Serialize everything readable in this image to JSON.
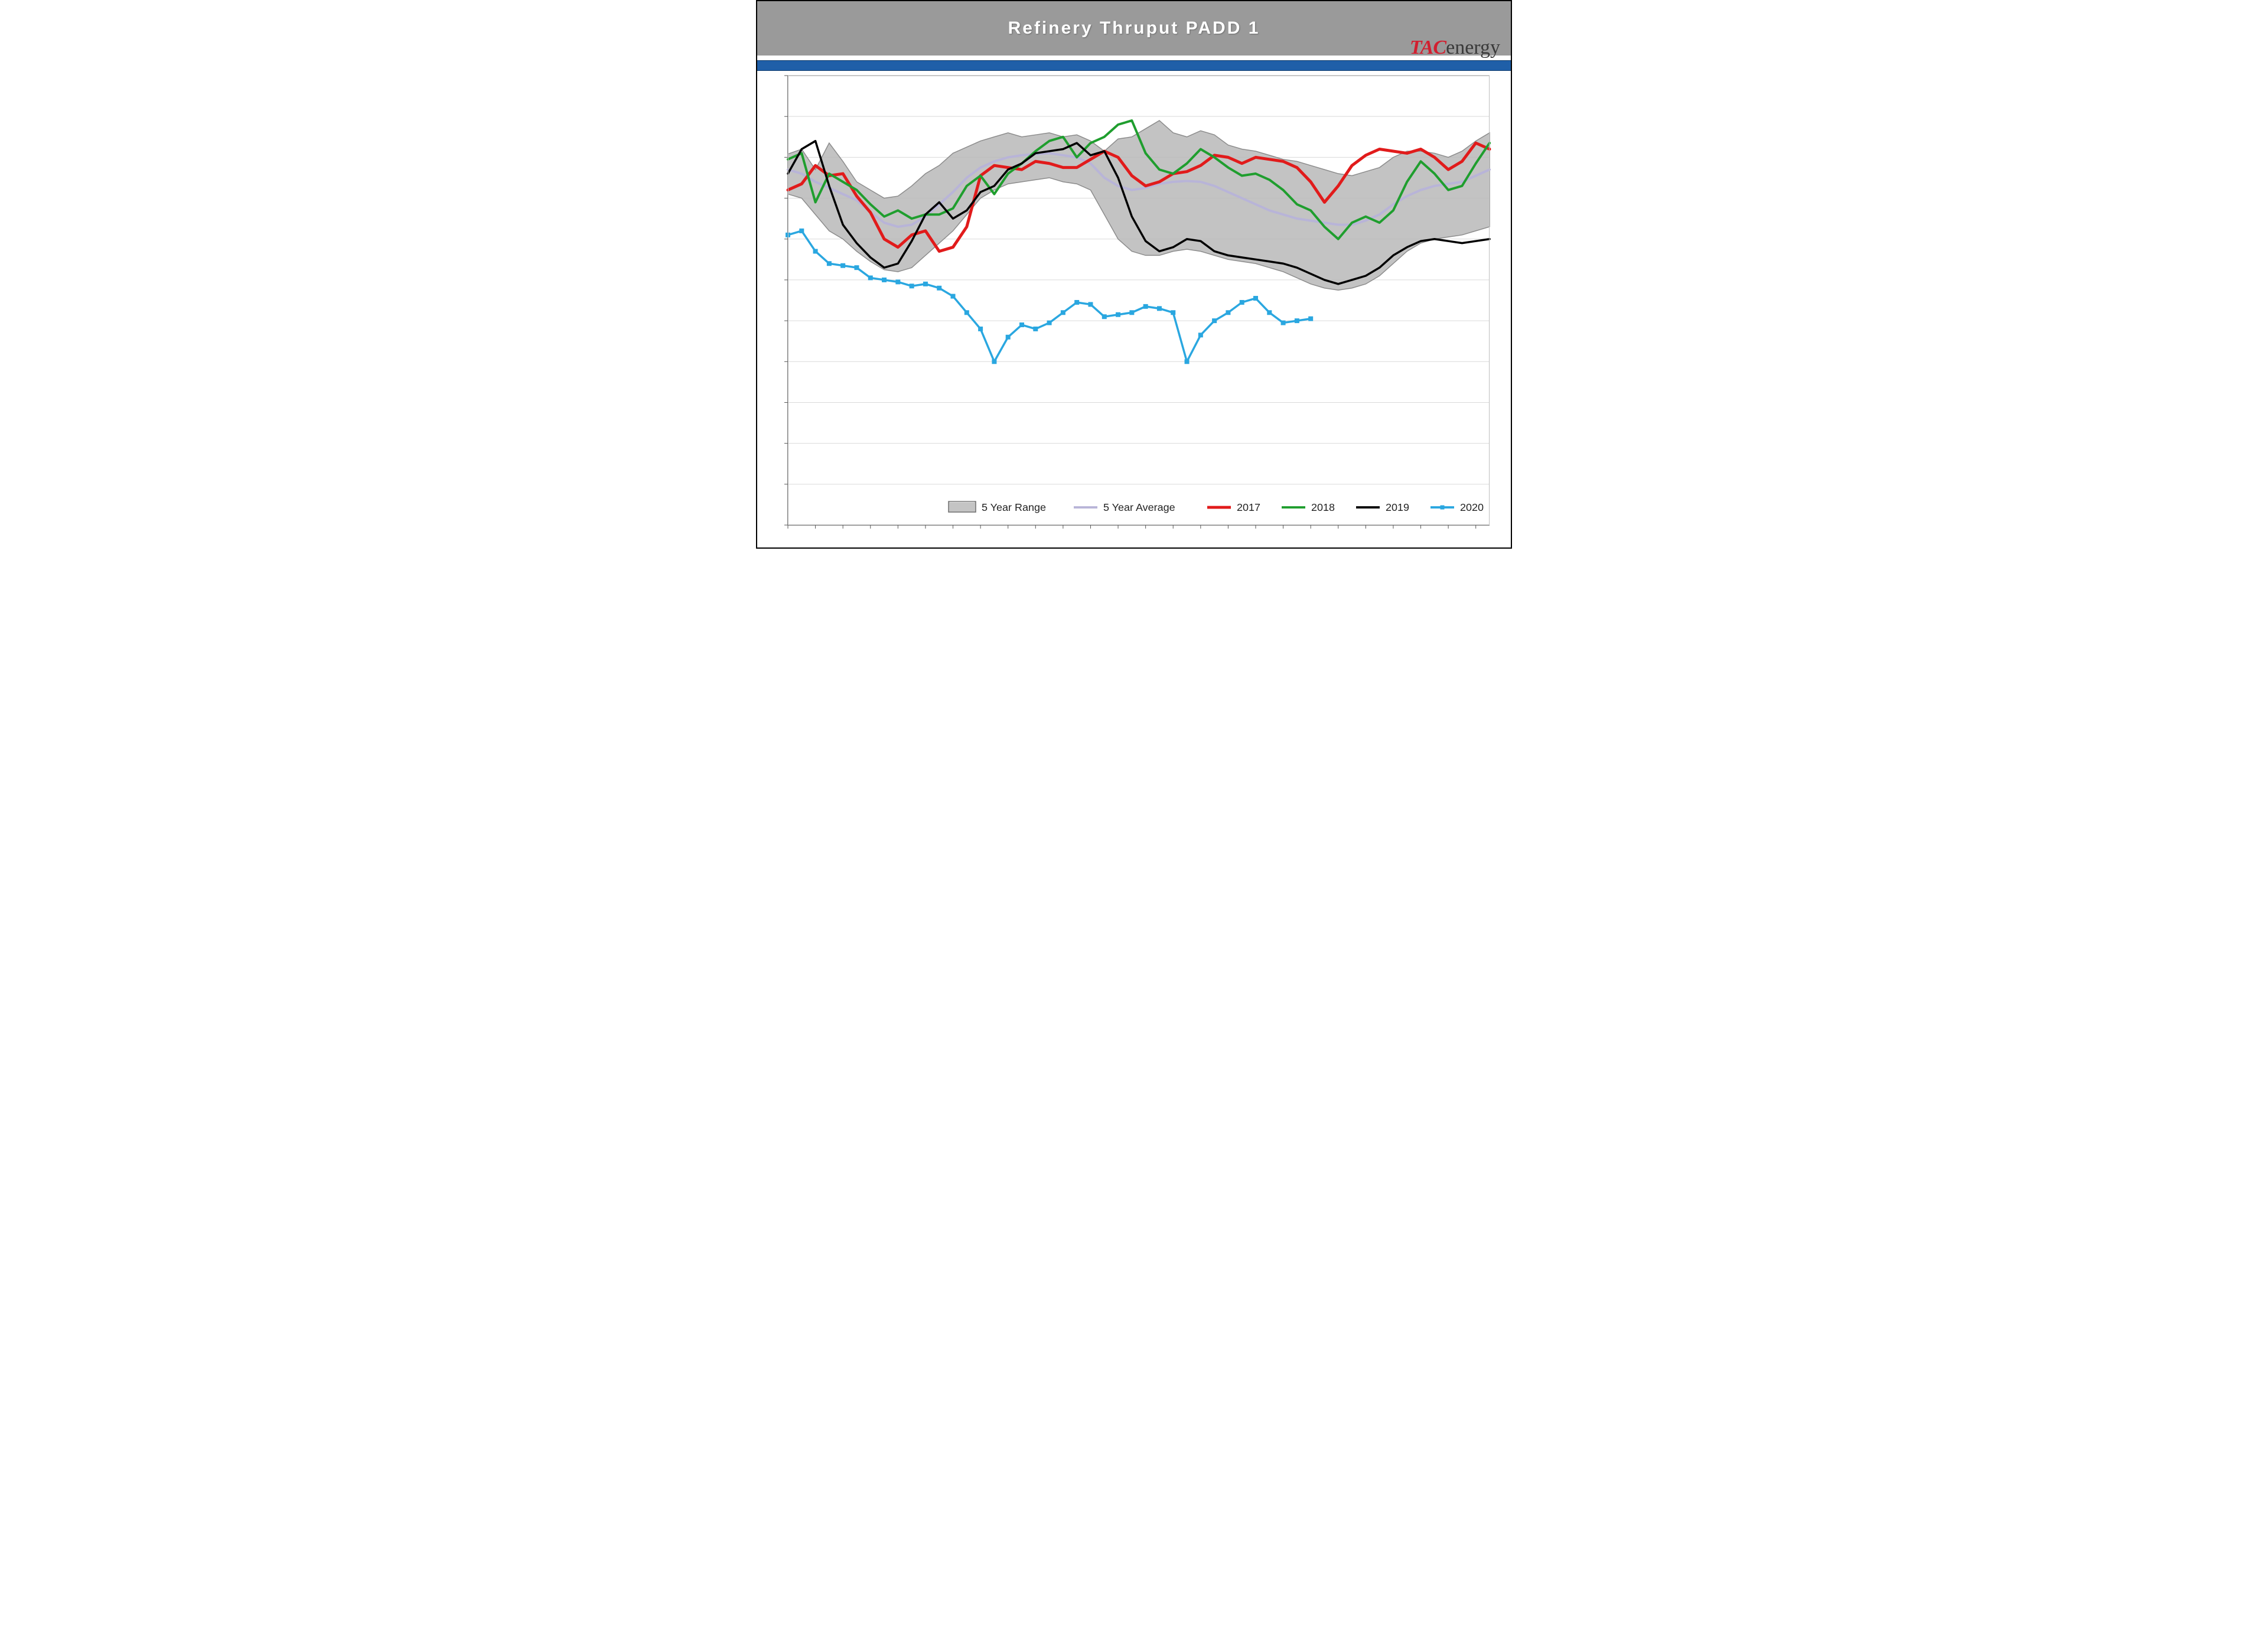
{
  "header": {
    "title": "Refinery Thruput PADD 1",
    "title_color": "#ffffff",
    "title_bar_bg": "#9a9a9a",
    "blue_band_color": "#1f5fa8",
    "logo_tac": "TAC",
    "logo_energy": "energy",
    "logo_tac_color": "#d21f2f",
    "logo_energy_color": "#3a3a3a"
  },
  "chart": {
    "type": "line_with_band",
    "background_color": "#ffffff",
    "plot_border_color": "#888888",
    "grid_color": "#d9d9d9",
    "xlim": [
      1,
      52
    ],
    "ylim": [
      200,
      1300
    ],
    "ytick_step": 100,
    "yticks": [
      200,
      300,
      400,
      500,
      600,
      700,
      800,
      900,
      1000,
      1100,
      1200,
      1300
    ],
    "range_band": {
      "label": "5 Year Range",
      "fill": "#b8b8b8",
      "stroke": "#8c8c8c",
      "stroke_width": 1.5,
      "upper": [
        1108,
        1120,
        1070,
        1135,
        1090,
        1040,
        1020,
        1000,
        1005,
        1030,
        1060,
        1080,
        1110,
        1125,
        1140,
        1150,
        1160,
        1150,
        1155,
        1160,
        1150,
        1155,
        1140,
        1115,
        1145,
        1150,
        1170,
        1190,
        1160,
        1150,
        1165,
        1155,
        1130,
        1120,
        1115,
        1105,
        1095,
        1090,
        1080,
        1070,
        1060,
        1055,
        1065,
        1075,
        1100,
        1115,
        1115,
        1110,
        1100,
        1115,
        1140,
        1160
      ],
      "lower": [
        1010,
        1000,
        960,
        920,
        900,
        870,
        845,
        825,
        820,
        830,
        860,
        890,
        920,
        960,
        1000,
        1020,
        1035,
        1040,
        1045,
        1050,
        1040,
        1035,
        1020,
        960,
        900,
        870,
        860,
        860,
        870,
        875,
        870,
        860,
        850,
        845,
        840,
        830,
        820,
        805,
        790,
        780,
        775,
        780,
        790,
        810,
        840,
        870,
        890,
        900,
        905,
        910,
        920,
        930
      ]
    },
    "series": [
      {
        "key": "avg",
        "label": "5 Year Average",
        "color": "#b8b4d8",
        "width": 4,
        "markers": false,
        "y": [
          1070,
          1060,
          1040,
          1025,
          1010,
          995,
          965,
          940,
          930,
          935,
          955,
          985,
          1015,
          1050,
          1075,
          1090,
          1100,
          1105,
          1108,
          1110,
          1105,
          1100,
          1085,
          1050,
          1030,
          1020,
          1025,
          1035,
          1040,
          1042,
          1040,
          1030,
          1015,
          1000,
          985,
          970,
          960,
          950,
          945,
          940,
          935,
          935,
          945,
          960,
          985,
          1005,
          1020,
          1030,
          1035,
          1040,
          1055,
          1070
        ]
      },
      {
        "key": "y2017",
        "label": "2017",
        "color": "#e11b1b",
        "width": 5,
        "markers": false,
        "y": [
          1020,
          1035,
          1080,
          1055,
          1060,
          1005,
          965,
          900,
          880,
          910,
          920,
          870,
          880,
          930,
          1055,
          1080,
          1075,
          1070,
          1090,
          1085,
          1075,
          1075,
          1095,
          1115,
          1100,
          1055,
          1030,
          1040,
          1060,
          1065,
          1080,
          1105,
          1100,
          1085,
          1100,
          1095,
          1090,
          1075,
          1040,
          990,
          1030,
          1080,
          1105,
          1120,
          1115,
          1110,
          1120,
          1100,
          1070,
          1090,
          1135,
          1120
        ]
      },
      {
        "key": "y2018",
        "label": "2018",
        "color": "#1f9e2e",
        "width": 4,
        "markers": false,
        "y": [
          1095,
          1110,
          990,
          1060,
          1040,
          1020,
          985,
          955,
          970,
          950,
          960,
          960,
          975,
          1030,
          1055,
          1010,
          1060,
          1085,
          1115,
          1140,
          1150,
          1100,
          1135,
          1150,
          1180,
          1190,
          1110,
          1070,
          1060,
          1085,
          1120,
          1100,
          1075,
          1055,
          1060,
          1045,
          1020,
          985,
          970,
          930,
          900,
          940,
          955,
          940,
          970,
          1040,
          1090,
          1060,
          1020,
          1030,
          1085,
          1135
        ]
      },
      {
        "key": "y2019",
        "label": "2019",
        "color": "#000000",
        "width": 3.5,
        "markers": false,
        "y": [
          1060,
          1120,
          1140,
          1030,
          935,
          890,
          855,
          830,
          840,
          895,
          960,
          990,
          950,
          970,
          1015,
          1030,
          1070,
          1085,
          1110,
          1115,
          1120,
          1135,
          1105,
          1115,
          1050,
          955,
          895,
          870,
          880,
          900,
          895,
          870,
          860,
          855,
          850,
          845,
          840,
          830,
          815,
          800,
          790,
          800,
          810,
          830,
          860,
          880,
          895,
          900,
          895,
          890,
          895,
          900
        ]
      },
      {
        "key": "y2020",
        "label": "2020",
        "color": "#2aa7e0",
        "width": 3.5,
        "markers": true,
        "marker_size": 7,
        "marker_shape": "square",
        "y": [
          910,
          920,
          870,
          840,
          835,
          830,
          805,
          800,
          795,
          785,
          790,
          780,
          760,
          720,
          680,
          600,
          660,
          690,
          680,
          695,
          720,
          745,
          740,
          710,
          715,
          720,
          735,
          730,
          720,
          600,
          665,
          700,
          720,
          745,
          755,
          720,
          695,
          700,
          705
        ]
      }
    ],
    "legend": {
      "position": "bottom-right-inside",
      "fontsize": 18,
      "range_swatch_fill": "#c4c4c4",
      "range_swatch_stroke": "#6f6f6f",
      "items": [
        {
          "type": "band",
          "label": "5 Year Range"
        },
        {
          "type": "line",
          "key": "avg",
          "label": "5 Year Average"
        },
        {
          "type": "line",
          "key": "y2017",
          "label": "2017"
        },
        {
          "type": "line",
          "key": "y2018",
          "label": "2018"
        },
        {
          "type": "line",
          "key": "y2019",
          "label": "2019"
        },
        {
          "type": "marker_line",
          "key": "y2020",
          "label": "2020"
        }
      ]
    }
  }
}
